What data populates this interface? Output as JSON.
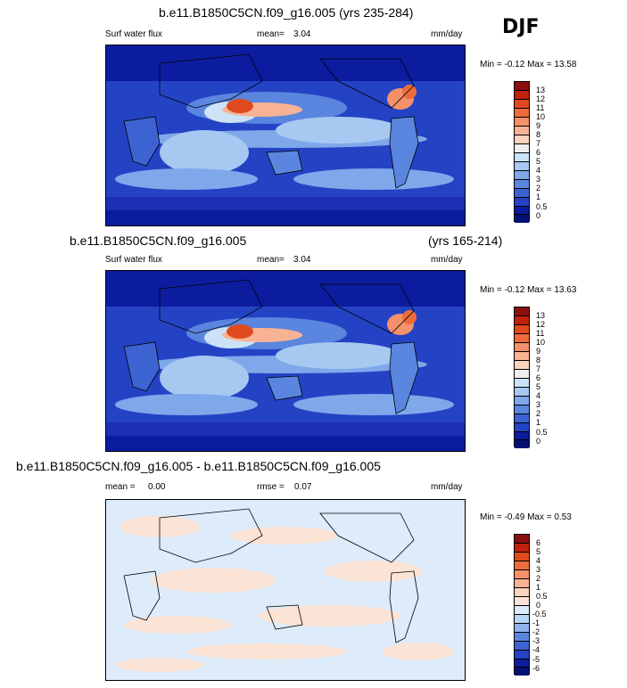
{
  "season": "DJF",
  "panels": [
    {
      "title": "b.e11.B1850C5CN.f09_g16.005 (yrs 235-284)",
      "variable": "Surf water flux",
      "mean_label": "mean=",
      "mean": "3.04",
      "units": "mm/day",
      "minmax": "Min = -0.12 Max = 13.58",
      "colorbar": [
        "13",
        "12",
        "11",
        "10",
        "9",
        "8",
        "7",
        "6",
        "5",
        "4",
        "3",
        "2",
        "1",
        "0.5",
        "0"
      ]
    },
    {
      "title_left": "b.e11.B1850C5CN.f09_g16.005",
      "title_right": "(yrs 165-214)",
      "variable": "Surf water flux",
      "mean_label": "mean=",
      "mean": "3.04",
      "units": "mm/day",
      "minmax": "Min = -0.12 Max = 13.63",
      "colorbar": [
        "13",
        "12",
        "11",
        "10",
        "9",
        "8",
        "7",
        "6",
        "5",
        "4",
        "3",
        "2",
        "1",
        "0.5",
        "0"
      ]
    },
    {
      "title": "b.e11.B1850C5CN.f09_g16.005 - b.e11.B1850C5CN.f09_g16.005",
      "mean_label": "mean =",
      "mean": "0.00",
      "rmse_label": "rmse =",
      "rmse": "0.07",
      "units": "mm/day",
      "minmax": "Min = -0.49 Max = 0.53",
      "colorbar": [
        "6",
        "5",
        "4",
        "3",
        "2",
        "1",
        "0.5",
        "0",
        "-0.5",
        "-1",
        "-2",
        "-3",
        "-4",
        "-5",
        "-6"
      ]
    }
  ],
  "colors": {
    "abs_scale": [
      "#8b0f0f",
      "#c0210b",
      "#e04a1e",
      "#ee6c3c",
      "#f4916a",
      "#f8b294",
      "#fbd3be",
      "#f1efed",
      "#cce3f7",
      "#a7c9f1",
      "#7fa8eb",
      "#5a86e0",
      "#3d63d3",
      "#2443c4",
      "#0c1c9e",
      "#051075"
    ],
    "diff_scale": [
      "#8b0f0f",
      "#c0210b",
      "#e04a1e",
      "#ee6c3c",
      "#f4916a",
      "#f8b294",
      "#fbd3be",
      "#fbe4d6",
      "#ddebfa",
      "#b8d4f3",
      "#8db2ed",
      "#5a86e0",
      "#3d63d3",
      "#2443c4",
      "#0c1c9e",
      "#051075"
    ]
  }
}
